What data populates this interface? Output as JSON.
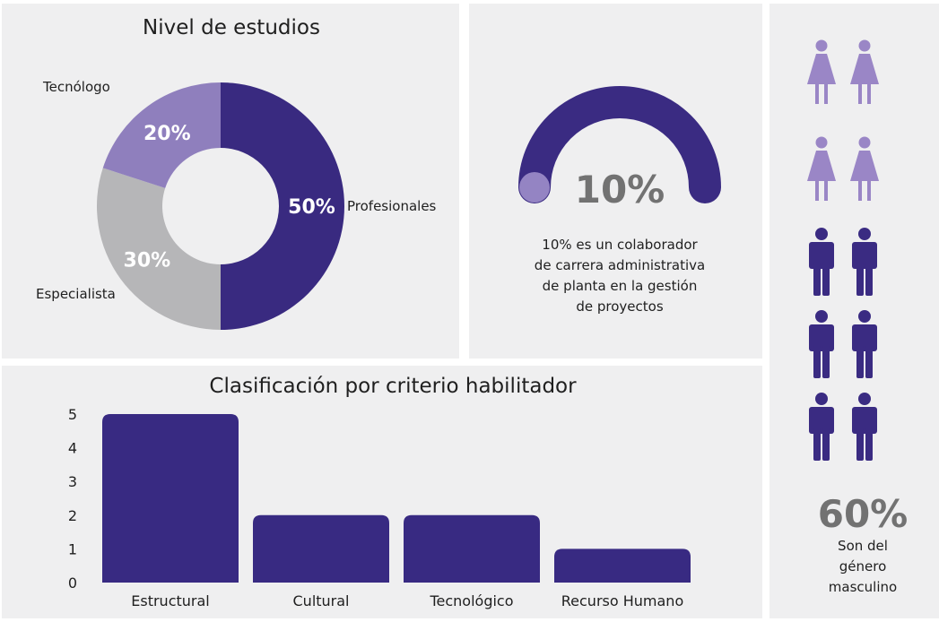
{
  "colors": {
    "profesionales": "#392a80",
    "especialista": "#b6b6b8",
    "tecnologo": "#8f7fbd",
    "gauge_track": "#3a2b82",
    "gauge_dot": "#9484c3",
    "female": "#9a86c6",
    "male": "#3a2b82",
    "bar": "#382a82"
  },
  "donut": {
    "chart_data": {
      "type": "pie",
      "title": "Nivel de estudios",
      "slices": [
        {
          "label": "Profesionales",
          "value": 50,
          "pct_label": "50%"
        },
        {
          "label": "Especialista",
          "value": 30,
          "pct_label": "30%"
        },
        {
          "label": "Tecnólogo",
          "value": 20,
          "pct_label": "20%"
        }
      ]
    }
  },
  "gauge": {
    "value": 10,
    "value_label": "10%",
    "description": [
      "10% es un colaborador",
      "de carrera administrativa",
      "de planta en la gestión",
      "de proyectos"
    ]
  },
  "gender": {
    "female_count": 4,
    "male_count": 6,
    "icons": [
      "female-icon",
      "male-icon"
    ],
    "value_label": "60%",
    "description": [
      "Son del",
      "género",
      "masculino"
    ]
  },
  "bars": {
    "chart_data": {
      "type": "bar",
      "title": "Clasificación por criterio habilitador",
      "categories": [
        "Estructural",
        "Cultural",
        "Tecnológico",
        "Recurso Humano"
      ],
      "values": [
        5,
        2,
        2,
        1
      ],
      "ylim": [
        0,
        5
      ],
      "yticks": [
        "0",
        "1",
        "2",
        "3",
        "4",
        "5"
      ],
      "xlabel": "",
      "ylabel": "",
      "grid": false
    }
  }
}
